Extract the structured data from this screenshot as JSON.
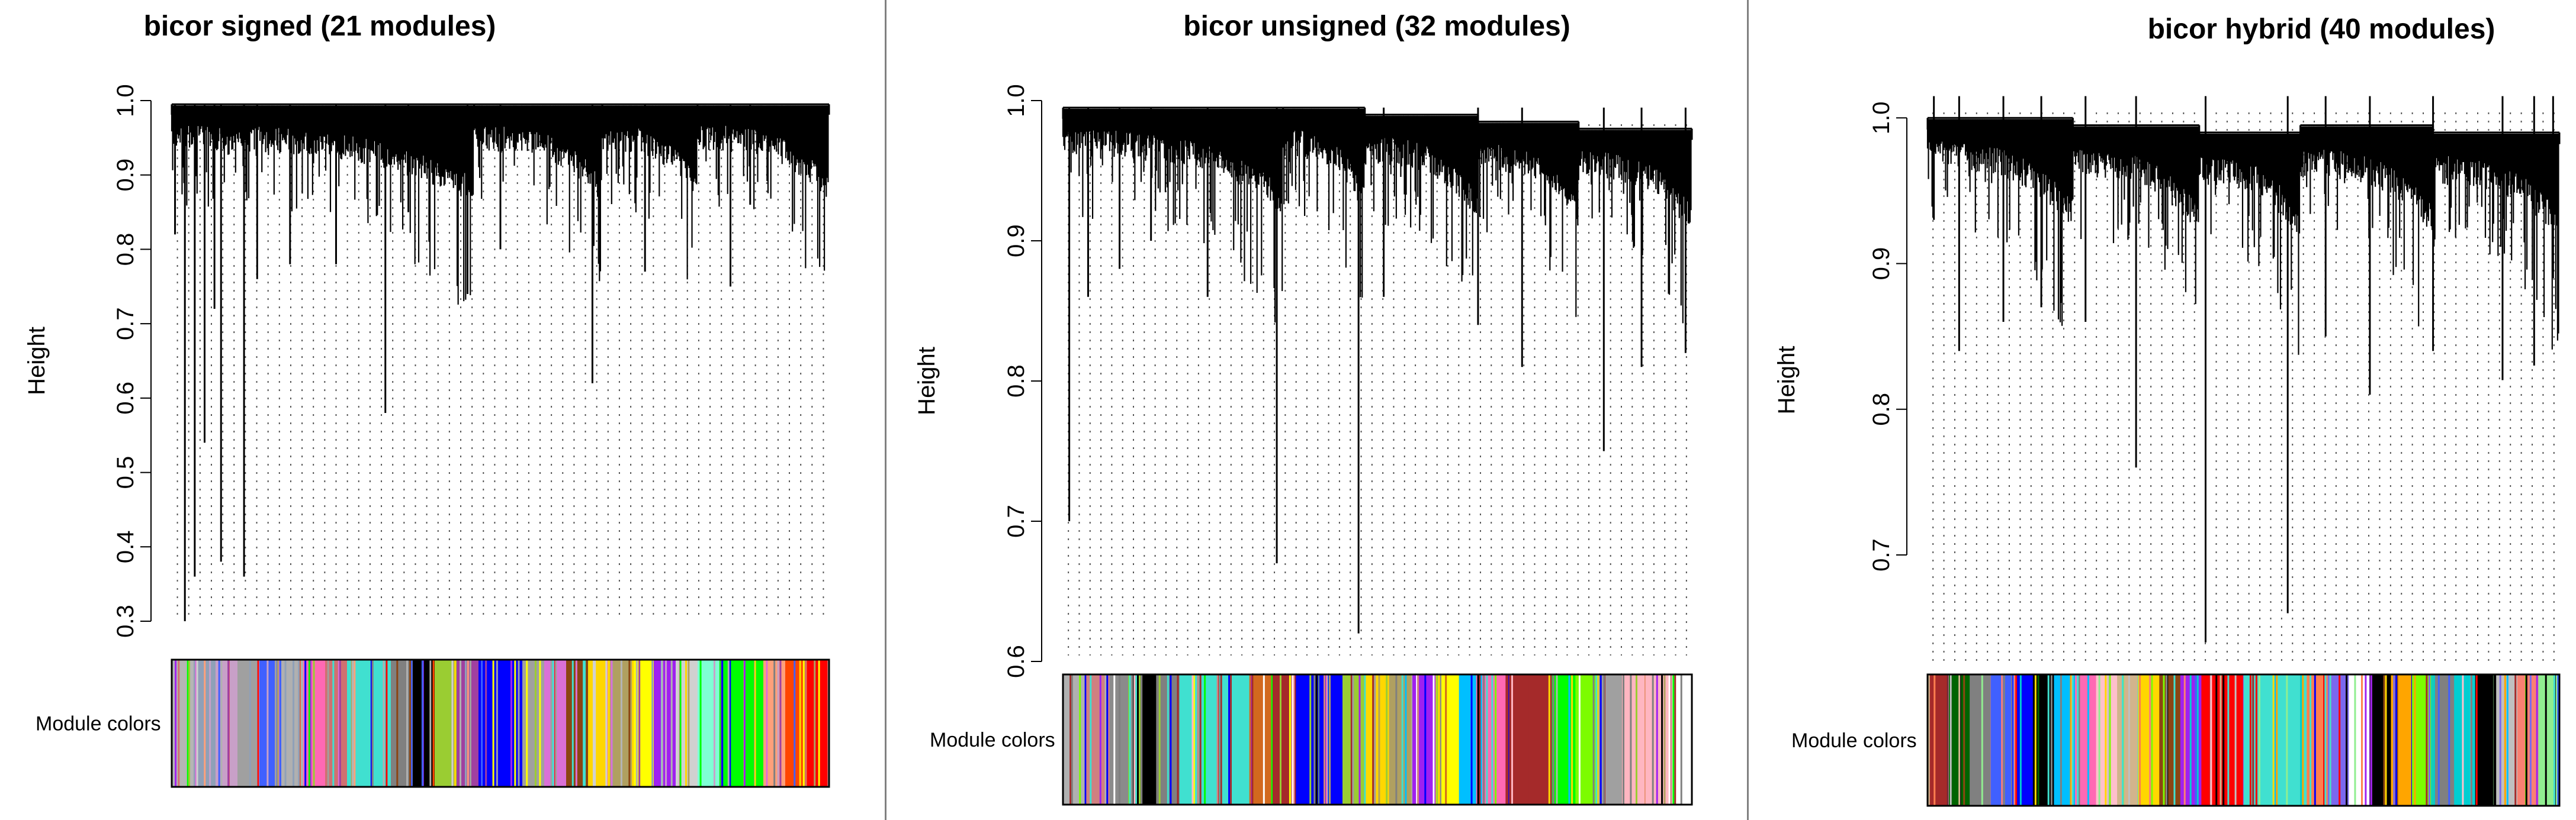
{
  "chart_data": [
    {
      "type": "dendrogram",
      "title": "bicor signed (21 modules)",
      "ylabel": "Height",
      "xlabel": "",
      "ylim": [
        0.3,
        1.0
      ],
      "yticks": [
        "0.3",
        "0.4",
        "0.5",
        "0.6",
        "0.7",
        "0.8",
        "0.9",
        "1.0"
      ],
      "ytick_values": [
        0.3,
        0.4,
        0.5,
        0.6,
        0.7,
        0.8,
        0.9,
        1.0
      ],
      "color_bar_label": "Module colors",
      "n_modules": 21,
      "branches": [
        {
          "x": 0.005,
          "min": 0.82
        },
        {
          "x": 0.02,
          "min": 0.3
        },
        {
          "x": 0.035,
          "min": 0.36
        },
        {
          "x": 0.05,
          "min": 0.54
        },
        {
          "x": 0.065,
          "min": 0.72
        },
        {
          "x": 0.075,
          "min": 0.38
        },
        {
          "x": 0.11,
          "min": 0.36
        },
        {
          "x": 0.13,
          "min": 0.76
        },
        {
          "x": 0.18,
          "min": 0.78
        },
        {
          "x": 0.25,
          "min": 0.78
        },
        {
          "x": 0.325,
          "min": 0.58
        },
        {
          "x": 0.36,
          "min": 0.85
        },
        {
          "x": 0.45,
          "min": 0.74
        },
        {
          "x": 0.5,
          "min": 0.8
        },
        {
          "x": 0.64,
          "min": 0.62
        },
        {
          "x": 0.72,
          "min": 0.77
        },
        {
          "x": 0.85,
          "min": 0.75
        },
        {
          "x": 0.88,
          "min": 0.86
        }
      ],
      "clusters": [
        [
          0.0,
          0.46,
          0.995
        ],
        [
          0.46,
          0.655,
          0.995
        ],
        [
          0.655,
          0.8,
          0.995
        ],
        [
          0.8,
          1.0,
          0.995
        ]
      ],
      "module_colors": [
        "#b5b5b5",
        "#8fa0b8",
        "#c8a0c8",
        "#a0a0a0",
        "#4060ff",
        "#b0b0b0",
        "#ff69b4",
        "#d07070",
        "#40e0d0",
        "#40e0d0",
        "#808080",
        "#000000",
        "#9acd32",
        "#a040a0",
        "#0000ff",
        "#0000ff",
        "#a0a0a0",
        "#da70d6",
        "#8b4513",
        "#ffd700",
        "#b0a060",
        "#ffff00",
        "#a020f0",
        "#d0d0d0",
        "#7fffd4",
        "#00ff00",
        "#00ff00",
        "#ffa07a",
        "#ff4500",
        "#ff0000"
      ]
    },
    {
      "type": "dendrogram",
      "title": "bicor unsigned (32 modules)",
      "ylabel": "Height",
      "xlabel": "",
      "ylim": [
        0.6,
        1.0
      ],
      "yticks": [
        "0.6",
        "0.7",
        "0.8",
        "0.9",
        "1.0"
      ],
      "ytick_values": [
        0.6,
        0.7,
        0.8,
        0.9,
        1.0
      ],
      "color_bar_label": "Module colors",
      "n_modules": 32,
      "branches": [
        {
          "x": 0.01,
          "min": 0.7
        },
        {
          "x": 0.04,
          "min": 0.86
        },
        {
          "x": 0.09,
          "min": 0.88
        },
        {
          "x": 0.14,
          "min": 0.9
        },
        {
          "x": 0.23,
          "min": 0.86
        },
        {
          "x": 0.34,
          "min": 0.67
        },
        {
          "x": 0.47,
          "min": 0.62
        },
        {
          "x": 0.51,
          "min": 0.86
        },
        {
          "x": 0.66,
          "min": 0.84
        },
        {
          "x": 0.73,
          "min": 0.81
        },
        {
          "x": 0.86,
          "min": 0.75
        },
        {
          "x": 0.92,
          "min": 0.81
        },
        {
          "x": 0.99,
          "min": 0.82
        }
      ],
      "clusters": [
        [
          0.0,
          0.35,
          0.995
        ],
        [
          0.35,
          0.48,
          0.995
        ],
        [
          0.48,
          0.66,
          0.99
        ],
        [
          0.66,
          0.82,
          0.985
        ],
        [
          0.82,
          1.0,
          0.98
        ]
      ],
      "module_colors": [
        "#b0b0b0",
        "#d08080",
        "#8b8b8b",
        "#000000",
        "#808080",
        "#40e0d0",
        "#40e0d0",
        "#40e0d0",
        "#d2691e",
        "#a52a2a",
        "#0000ff",
        "#0000ff",
        "#9acd32",
        "#ffd700",
        "#b0a060",
        "#a020f0",
        "#ffff00",
        "#00bfff",
        "#ff69b4",
        "#a52a2a",
        "#a52a2a",
        "#00ff00",
        "#7cfc00",
        "#a0a0a0",
        "#ffb6c1",
        "#ffb6c1",
        "#ffffff"
      ]
    },
    {
      "type": "dendrogram",
      "title": "bicor hybrid (40 modules)",
      "ylabel": "Height",
      "xlabel": "",
      "ylim": [
        0.62,
        1.02
      ],
      "yticks": [
        "0.7",
        "0.8",
        "0.9",
        "1.0"
      ],
      "ytick_values": [
        0.7,
        0.8,
        0.9,
        1.0
      ],
      "color_bar_label": "Module colors",
      "n_modules": 40,
      "branches": [
        {
          "x": 0.01,
          "min": 0.93
        },
        {
          "x": 0.05,
          "min": 0.84
        },
        {
          "x": 0.12,
          "min": 0.86
        },
        {
          "x": 0.18,
          "min": 0.87
        },
        {
          "x": 0.25,
          "min": 0.86
        },
        {
          "x": 0.33,
          "min": 0.76
        },
        {
          "x": 0.44,
          "min": 0.64
        },
        {
          "x": 0.57,
          "min": 0.66
        },
        {
          "x": 0.63,
          "min": 0.85
        },
        {
          "x": 0.7,
          "min": 0.81
        },
        {
          "x": 0.8,
          "min": 0.84
        },
        {
          "x": 0.91,
          "min": 0.82
        },
        {
          "x": 0.96,
          "min": 0.83
        },
        {
          "x": 0.99,
          "min": 0.89
        }
      ],
      "clusters": [
        [
          0.0,
          0.23,
          1.0
        ],
        [
          0.23,
          0.43,
          0.995
        ],
        [
          0.43,
          0.59,
          0.99
        ],
        [
          0.59,
          0.8,
          0.995
        ],
        [
          0.8,
          1.0,
          0.99
        ]
      ],
      "module_colors": [
        "#a52a2a",
        "#006400",
        "#808080",
        "#4060ff",
        "#0000ff",
        "#000000",
        "#00bfff",
        "#ff69b4",
        "#ffc0cb",
        "#d2b48c",
        "#ffd700",
        "#8b4513",
        "#a020f0",
        "#ff0000",
        "#ff0000",
        "#40e0d0",
        "#40e0d0",
        "#40e0d0",
        "#ff7f50",
        "#7b68ee",
        "#ffffff",
        "#000000",
        "#ffa500",
        "#7cfc00",
        "#808080",
        "#00ced1",
        "#000000",
        "#c0c0c0",
        "#fa8072",
        "#90ee90"
      ]
    }
  ]
}
